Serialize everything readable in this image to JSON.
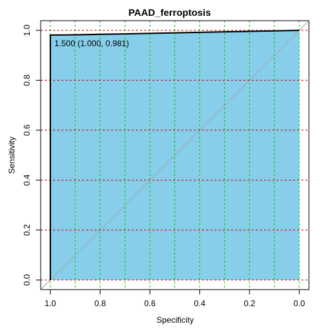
{
  "chart_data": {
    "type": "area",
    "title": "PAAD_ferroptosis",
    "xlabel": "Specificity",
    "ylabel": "Sensitivity",
    "x_reversed": true,
    "xlim": [
      1.0,
      0.0
    ],
    "ylim": [
      0.0,
      1.0
    ],
    "x_ticks": [
      1.0,
      0.8,
      0.6,
      0.4,
      0.2,
      0.0
    ],
    "x_tick_labels": [
      "1.0",
      "0.8",
      "0.6",
      "0.4",
      "0.2",
      "0.0"
    ],
    "y_ticks": [
      0.0,
      0.2,
      0.4,
      0.6,
      0.8,
      1.0
    ],
    "y_tick_labels": [
      "0.0",
      "0.2",
      "0.4",
      "0.6",
      "0.8",
      "1.0"
    ],
    "series": [
      {
        "specificity": [
          1.0,
          1.0,
          0.9,
          0.8,
          0.7,
          0.6,
          0.5,
          0.4,
          0.3,
          0.2,
          0.1,
          0.0
        ],
        "sensitivity": [
          0.0,
          0.981,
          0.982,
          0.984,
          0.986,
          0.988,
          0.99,
          0.992,
          0.994,
          0.996,
          0.998,
          1.0
        ]
      }
    ],
    "annotation": {
      "text": "1.500 (1.000, 0.981)",
      "specificity": 1.0,
      "sensitivity": 0.981
    },
    "grid": true,
    "colors": {
      "fill": "#87ceeb",
      "roc_line": "#000000",
      "diagonal": "#a6a6a6",
      "grid_vertical": "#00cc00",
      "grid_horizontal": "#cc0000"
    }
  }
}
